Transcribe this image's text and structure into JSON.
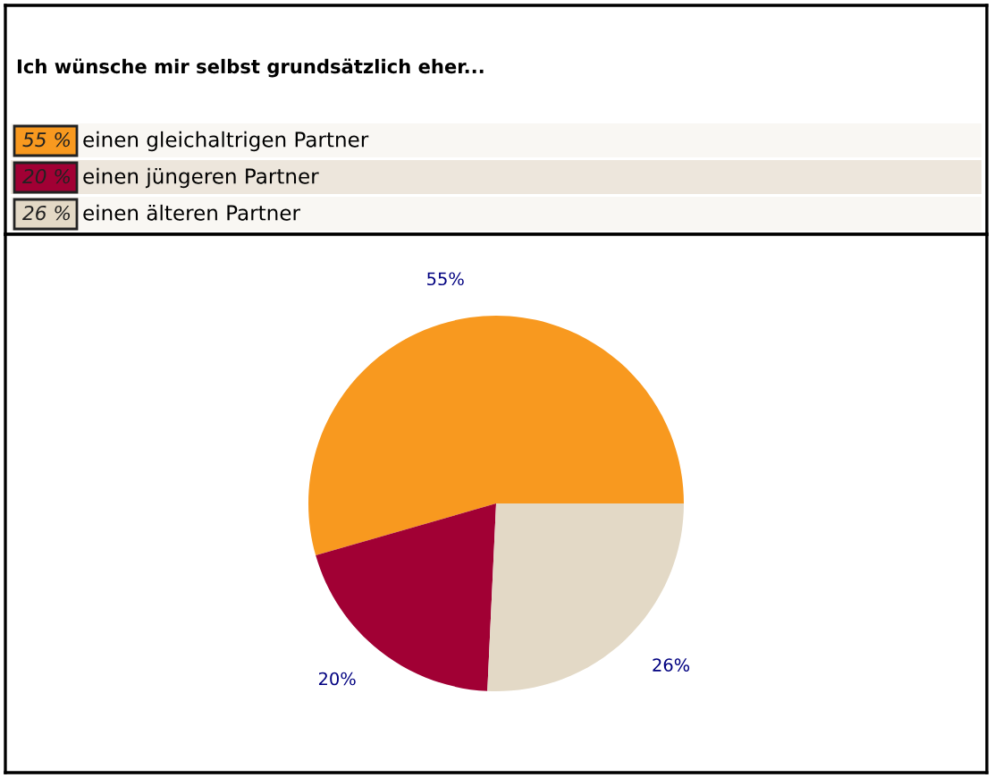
{
  "chart_data": {
    "type": "pie",
    "title": "Ich wünsche mir selbst grundsätzlich eher...",
    "categories": [
      "einen gleichaltrigen Partner",
      "einen jüngeren Partner",
      "einen älteren Partner"
    ],
    "values": [
      55,
      20,
      26
    ],
    "colors": [
      "#f8991f",
      "#a10034",
      "#e3d9c6"
    ],
    "value_labels": [
      "55%",
      "20%",
      "26%"
    ],
    "annotations": [
      "55 %",
      "20 %",
      "26 %"
    ],
    "legend": "top"
  }
}
